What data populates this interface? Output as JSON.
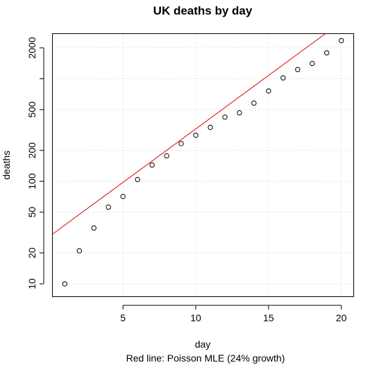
{
  "chart_data": {
    "type": "scatter",
    "title": "UK deaths by day",
    "xlabel": "day",
    "ylabel": "deaths",
    "subtitle": "Red line: Poisson MLE (24% growth)",
    "xlim": [
      0.15,
      20.85
    ],
    "ylim": [
      7.5,
      2750
    ],
    "y_scale": "log",
    "grid": true,
    "x_ticks": [
      5,
      10,
      15,
      20
    ],
    "y_ticks": [
      10,
      20,
      50,
      100,
      200,
      500,
      1000,
      2000
    ],
    "y_tick_labels": [
      "10",
      "20",
      "50",
      "100",
      "200",
      "500",
      "",
      "2000"
    ],
    "x_grid": [
      0,
      5,
      10,
      15,
      20
    ],
    "y_grid": [
      10,
      20,
      50,
      100,
      200,
      500,
      1000,
      2000
    ],
    "series": [
      {
        "x": [
          1,
          2,
          3,
          4,
          5,
          6,
          7,
          8,
          9,
          10,
          11,
          12,
          13,
          14,
          15,
          16,
          17,
          18,
          19,
          20
        ],
        "y": [
          10,
          21,
          35,
          56,
          71,
          104,
          144,
          177,
          233,
          281,
          335,
          422,
          465,
          578,
          759,
          1019,
          1228,
          1408,
          1789,
          2352
        ],
        "marker": "open-circle",
        "color": "#000000"
      }
    ],
    "fit_line": {
      "color": "#e00000",
      "growth_rate": 0.24,
      "intercept_at_x0": 29.4
    }
  }
}
